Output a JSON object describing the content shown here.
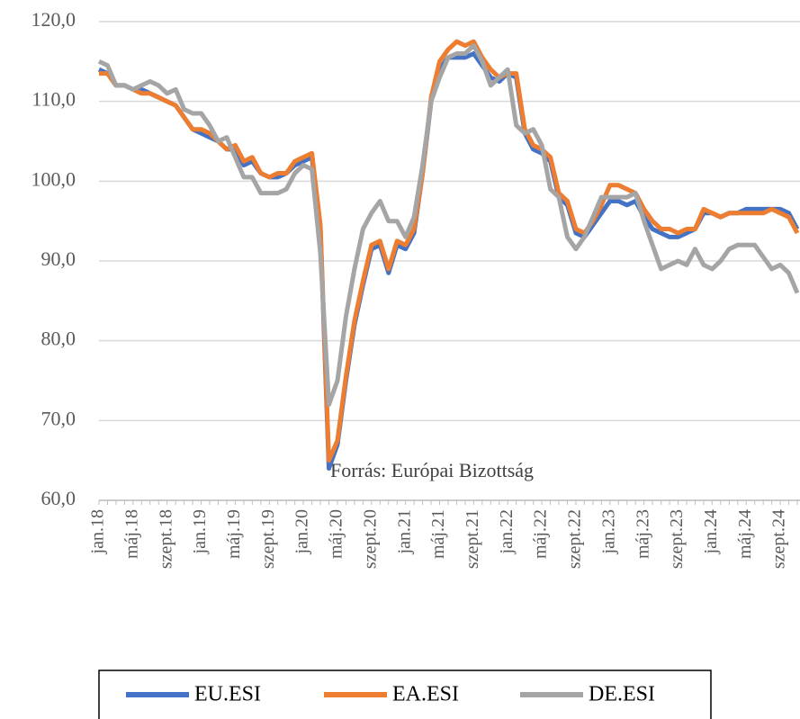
{
  "chart_data": {
    "type": "line",
    "annotation": "Forrás: Európai Bizottság",
    "categories": [
      "jan.18",
      null,
      null,
      null,
      "máj.18",
      null,
      null,
      null,
      "szept.18",
      null,
      null,
      null,
      "jan.19",
      null,
      null,
      null,
      "máj.19",
      null,
      null,
      null,
      "szept.19",
      null,
      null,
      null,
      "jan.20",
      null,
      null,
      null,
      "máj.20",
      null,
      null,
      null,
      "szept.20",
      null,
      null,
      null,
      "jan.21",
      null,
      null,
      null,
      "máj.21",
      null,
      null,
      null,
      "szept.21",
      null,
      null,
      null,
      "jan.22",
      null,
      null,
      null,
      "máj.22",
      null,
      null,
      null,
      "szept.22",
      null,
      null,
      null,
      "jan.23",
      null,
      null,
      null,
      "máj.23",
      null,
      null,
      null,
      "szept.23",
      null,
      null,
      null,
      "jan.24",
      null,
      null,
      null,
      "máj.24",
      null,
      null,
      null,
      "szept.24",
      null,
      null
    ],
    "series": [
      {
        "name": "EU.ESI",
        "color": "#4472c4",
        "values": [
          114,
          113.5,
          112,
          112,
          111.5,
          111.5,
          111,
          110.5,
          110,
          109.5,
          108,
          106.5,
          106,
          105.5,
          105,
          104,
          104,
          102,
          102.5,
          101,
          100.5,
          100.5,
          101,
          102,
          102.5,
          103,
          94,
          64,
          67,
          75,
          82,
          87,
          91.5,
          92,
          88.5,
          92,
          91.5,
          93.5,
          101,
          110,
          114,
          115.5,
          115.5,
          115.5,
          116,
          114.5,
          113,
          112.5,
          113.5,
          113,
          106,
          104,
          103.5,
          102.5,
          98,
          97,
          93.5,
          93,
          94.5,
          96,
          97.5,
          97.5,
          97,
          97.5,
          95.5,
          94,
          93.5,
          93,
          93,
          93.5,
          94,
          96,
          96,
          95.5,
          96,
          96,
          96.5,
          96.5,
          96.5,
          96.5,
          96.5,
          96,
          94
        ]
      },
      {
        "name": "EA.ESI",
        "color": "#ed7d31",
        "values": [
          113.5,
          113.5,
          112,
          112,
          111.5,
          111,
          111,
          110.5,
          110,
          109.5,
          108,
          106.5,
          106.5,
          106,
          105,
          104,
          104.5,
          102.5,
          103,
          101,
          100.5,
          101,
          101,
          102.5,
          103,
          103.5,
          94.5,
          65,
          67.5,
          75.5,
          82.5,
          87.5,
          92,
          92.5,
          89,
          92.5,
          92,
          94,
          101,
          110.5,
          115,
          116.5,
          117.5,
          117,
          117.5,
          115.5,
          114,
          113,
          113.5,
          113.5,
          106.5,
          104.5,
          104,
          103,
          98.5,
          97.5,
          94,
          93.5,
          95,
          97,
          99.5,
          99.5,
          99,
          98.5,
          96.5,
          95,
          94,
          94,
          93.5,
          94,
          94,
          96.5,
          96,
          95.5,
          96,
          96,
          96,
          96,
          96,
          96.5,
          96,
          95.5,
          93.5
        ]
      },
      {
        "name": "DE.ESI",
        "color": "#a5a5a5",
        "values": [
          115,
          114.5,
          112,
          112,
          111.5,
          112,
          112.5,
          112,
          111,
          111.5,
          109,
          108.5,
          108.5,
          107,
          105,
          105.5,
          103,
          100.5,
          100.5,
          98.5,
          98.5,
          98.5,
          99,
          101,
          102,
          101.5,
          91,
          72,
          75,
          83,
          89,
          94,
          96,
          97.5,
          95,
          95,
          93,
          95.5,
          102,
          110,
          113,
          115.5,
          116,
          116,
          117,
          115,
          112,
          113,
          114,
          107,
          106,
          106.5,
          104.5,
          99,
          98,
          93,
          91.5,
          93,
          95.5,
          98,
          98,
          98,
          98,
          98.5,
          95,
          92,
          89,
          89.5,
          90,
          89.5,
          91.5,
          89.5,
          89,
          90,
          91.5,
          92,
          92,
          92,
          90.5,
          89,
          89.5,
          88.5,
          86
        ]
      }
    ],
    "ylim": [
      60,
      120
    ],
    "yticks": [
      {
        "value": 60,
        "label": "60,0"
      },
      {
        "value": 70,
        "label": "70,0"
      },
      {
        "value": 80,
        "label": "80,0"
      },
      {
        "value": 90,
        "label": "90,0"
      },
      {
        "value": 100,
        "label": "100,0"
      },
      {
        "value": 110,
        "label": "110,0"
      },
      {
        "value": 120,
        "label": "120,0"
      }
    ],
    "grid": true,
    "legend": "bottom"
  }
}
